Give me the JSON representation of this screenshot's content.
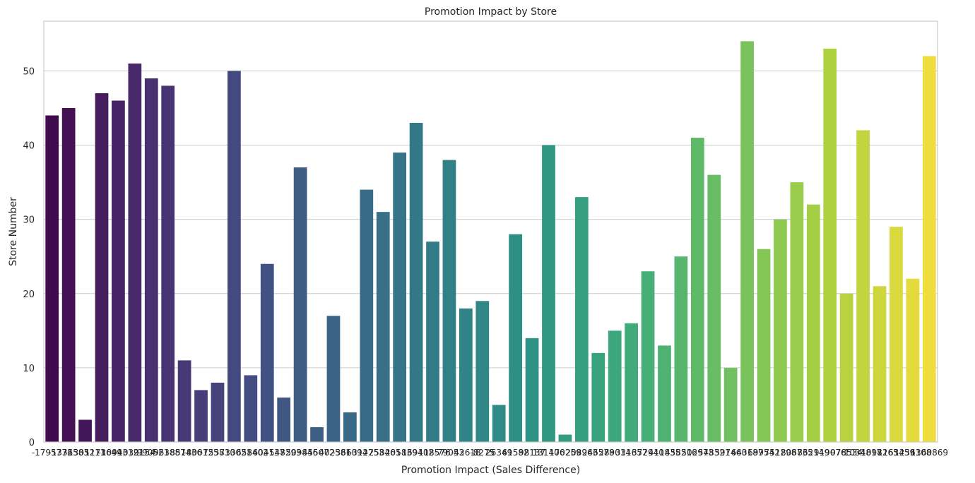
{
  "chart_data": {
    "type": "bar",
    "title": "Promotion Impact by Store",
    "xlabel": "Promotion Impact (Sales Difference)",
    "ylabel": "Store Number",
    "ylim": [
      0,
      56.7
    ],
    "yticks": [
      0,
      10,
      20,
      30,
      40,
      50
    ],
    "grid": "horizontal",
    "colormap": "viridis",
    "categories": [
      "-1795772",
      "-1336583",
      "-1305211",
      "-1173649",
      "-1094312",
      "-1039154",
      "-990521",
      "-963887",
      "-851436",
      "-800125",
      "-753810",
      "-733021",
      "-658402",
      "-604137",
      "-548293",
      "-509846",
      "-455072",
      "-402581",
      "-366094",
      "-312753",
      "-258461",
      "-205839",
      "-169402",
      "-118576",
      "-79053",
      "-42618",
      "-8275",
      "26349",
      "61582",
      "98137",
      "131406",
      "170259",
      "208963",
      "246578",
      "289014",
      "331657",
      "372940",
      "411835",
      "458216",
      "502973",
      "548321",
      "597460",
      "643187",
      "699542",
      "751298",
      "806735",
      "862149",
      "919076",
      "978534",
      "1034817",
      "1098265",
      "1163459",
      "1236108",
      "1360869"
    ],
    "values": [
      44,
      45,
      3,
      47,
      46,
      51,
      49,
      48,
      11,
      7,
      8,
      50,
      9,
      24,
      6,
      37,
      2,
      17,
      4,
      34,
      31,
      39,
      43,
      27,
      38,
      18,
      19,
      5,
      28,
      14,
      40,
      1,
      33,
      12,
      15,
      16,
      23,
      13,
      25,
      41,
      36,
      10,
      54,
      26,
      30,
      35,
      32,
      53,
      20,
      42,
      21,
      29,
      22,
      52
    ]
  }
}
